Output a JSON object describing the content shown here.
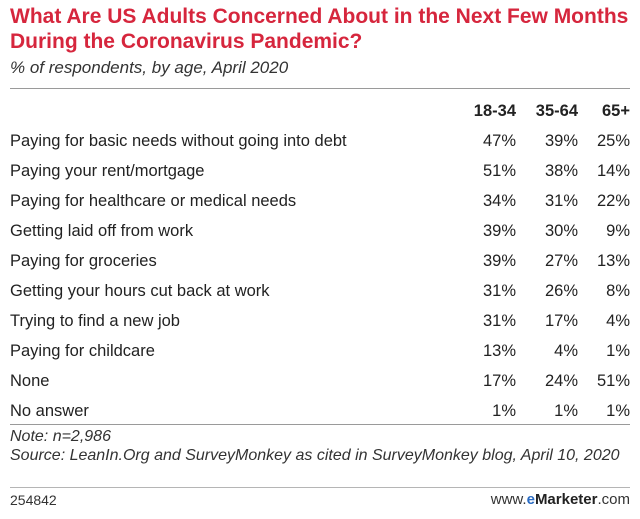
{
  "chart_data": {
    "type": "table",
    "title": "What Are US Adults Concerned About in the Next Few Months During the Coronavirus Pandemic?",
    "subtitle": "% of respondents, by age, April 2020",
    "columns": [
      "18-34",
      "35-64",
      "65+"
    ],
    "rows": [
      {
        "label": "Paying for basic needs without going into debt",
        "values": [
          "47%",
          "39%",
          "25%"
        ]
      },
      {
        "label": "Paying your rent/mortgage",
        "values": [
          "51%",
          "38%",
          "14%"
        ]
      },
      {
        "label": "Paying for healthcare or medical needs",
        "values": [
          "34%",
          "31%",
          "22%"
        ]
      },
      {
        "label": "Getting laid off from work",
        "values": [
          "39%",
          "30%",
          "9%"
        ]
      },
      {
        "label": "Paying for groceries",
        "values": [
          "39%",
          "27%",
          "13%"
        ]
      },
      {
        "label": "Getting your hours cut back at work",
        "values": [
          "31%",
          "26%",
          "8%"
        ]
      },
      {
        "label": "Trying to find a new job",
        "values": [
          "31%",
          "17%",
          "4%"
        ]
      },
      {
        "label": "Paying for childcare",
        "values": [
          "13%",
          "4%",
          "1%"
        ]
      },
      {
        "label": "None",
        "values": [
          "17%",
          "24%",
          "51%"
        ]
      },
      {
        "label": "No answer",
        "values": [
          "1%",
          "1%",
          "1%"
        ]
      }
    ],
    "note": "Note: n=2,986",
    "source": "Source: LeanIn.Org and SurveyMonkey as cited in SurveyMonkey blog, April 10, 2020"
  },
  "footer": {
    "id": "254842",
    "brand_prefix": "www.",
    "brand_e": "e",
    "brand_name": "Marketer",
    "brand_suffix": ".com"
  },
  "colors": {
    "title": "#d6263d",
    "brand_e": "#2a6cc4"
  }
}
